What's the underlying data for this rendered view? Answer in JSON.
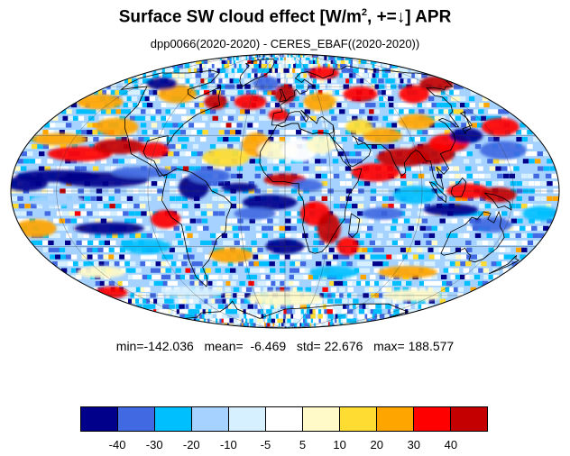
{
  "header": {
    "title_prefix": "Surface SW cloud effect [W/m",
    "title_sup": "2",
    "title_suffix": ", +=↓]  APR",
    "subtitle": "dpp0066(2020-2020) - CERES_EBAF((2020-2020))"
  },
  "stats": {
    "min_label": "min=",
    "min": "-142.036",
    "mean_label": "mean=",
    "mean": "-6.469",
    "std_label": "std=",
    "std": "22.676",
    "max_label": "max=",
    "max": "188.577"
  },
  "map": {
    "projection": "mollweide",
    "field": "Surface SW cloud effect difference"
  },
  "colorbar": {
    "colors": [
      "#00008b",
      "#4169e1",
      "#00bfff",
      "#a6d2ff",
      "#d6f0ff",
      "#ffffff",
      "#fffac8",
      "#ffdc32",
      "#ffa500",
      "#ff0000",
      "#c40000"
    ],
    "tick_labels": [
      "-40",
      "-30",
      "-20",
      "-10",
      "-5",
      "5",
      "10",
      "20",
      "30",
      "40"
    ]
  }
}
